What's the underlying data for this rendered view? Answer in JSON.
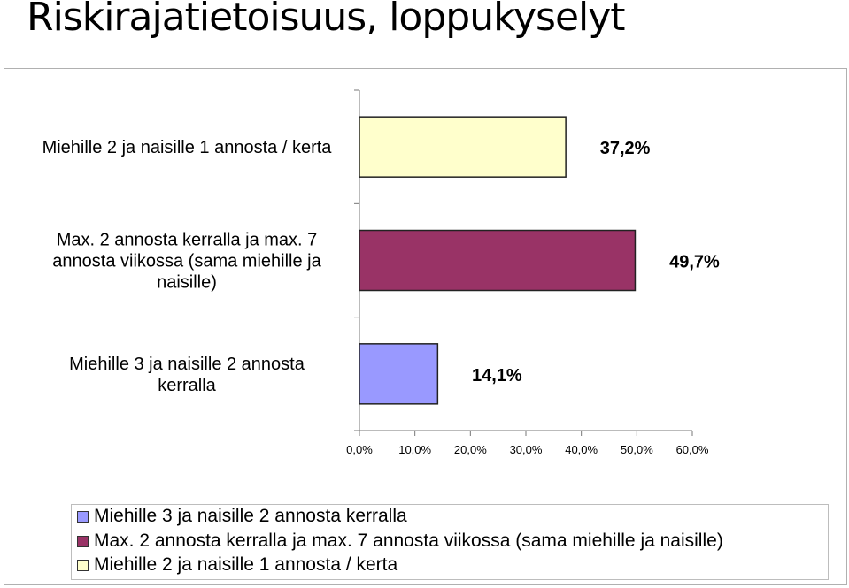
{
  "page": {
    "title": "Riskirajatietoisuus, loppukyselyt"
  },
  "chart_data": {
    "type": "bar",
    "orientation": "horizontal",
    "categories": [
      "Miehille 2 ja naisille 1 annosta / kerta",
      "Max. 2 annosta kerralla ja max. 7 annosta viikossa (sama miehille ja naisille)",
      "Miehille 3 ja naisille 2 annosta kerralla"
    ],
    "category_label_lines": [
      [
        "Miehille 2 ja naisille 1 annosta / kerta"
      ],
      [
        "Max. 2 annosta kerralla ja max. 7",
        "annosta viikossa (sama miehille ja",
        "naisille)"
      ],
      [
        "Miehille 3 ja naisille 2 annosta",
        "kerralla"
      ]
    ],
    "values": [
      37.2,
      49.7,
      14.1
    ],
    "data_labels": [
      "37,2%",
      "49,7%",
      "14,1%"
    ],
    "colors": [
      "#ffffcc",
      "#993366",
      "#9999ff"
    ],
    "xlim": [
      0,
      60
    ],
    "x_ticks": [
      "0,0%",
      "10,0%",
      "20,0%",
      "30,0%",
      "40,0%",
      "50,0%",
      "60,0%"
    ],
    "grid": false,
    "legend_position": "bottom",
    "legend": [
      {
        "label": "Miehille 3 ja naisille 2 annosta kerralla",
        "color": "#9999ff"
      },
      {
        "label": "Max. 2 annosta kerralla ja max. 7 annosta viikossa (sama miehille ja naisille)",
        "color": "#993366"
      },
      {
        "label": "Miehille 2 ja naisille 1 annosta / kerta",
        "color": "#ffffcc"
      }
    ]
  }
}
